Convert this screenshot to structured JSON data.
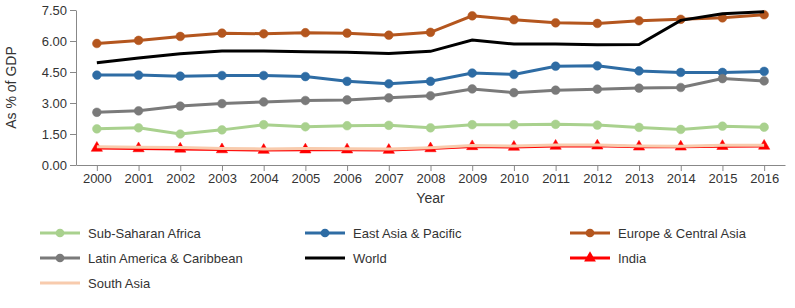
{
  "chart_data": {
    "type": "line",
    "x_label": "Year",
    "y_label": "As % of GDP",
    "categories": [
      "2000",
      "2001",
      "2002",
      "2003",
      "2004",
      "2005",
      "2006",
      "2007",
      "2008",
      "2009",
      "2010",
      "2011",
      "2012",
      "2013",
      "2014",
      "2015",
      "2016"
    ],
    "ylim": [
      0,
      7.5
    ],
    "yticks": [
      {
        "value": 0,
        "label": "0.00"
      },
      {
        "value": 1.5,
        "label": "1.50"
      },
      {
        "value": 3,
        "label": "3.00"
      },
      {
        "value": 4.5,
        "label": "4.50"
      },
      {
        "value": 6,
        "label": "6.00"
      },
      {
        "value": 7.5,
        "label": "7.50"
      }
    ],
    "grid": false,
    "legend": "bottom",
    "series": [
      {
        "name": "Sub-Saharan Africa",
        "color": "#a9d18e",
        "marker": "circle",
        "values": [
          1.75,
          1.8,
          1.5,
          1.7,
          1.95,
          1.85,
          1.9,
          1.92,
          1.8,
          1.95,
          1.95,
          1.97,
          1.93,
          1.82,
          1.72,
          1.88,
          1.83
        ]
      },
      {
        "name": "East Asia & Pacific",
        "color": "#2e6ca4",
        "marker": "circle",
        "values": [
          4.35,
          4.35,
          4.3,
          4.33,
          4.33,
          4.28,
          4.05,
          3.93,
          4.05,
          4.45,
          4.38,
          4.78,
          4.8,
          4.55,
          4.48,
          4.48,
          4.53
        ]
      },
      {
        "name": "Europe & Central Asia",
        "color": "#b4561e",
        "marker": "circle",
        "values": [
          5.88,
          6.03,
          6.22,
          6.38,
          6.35,
          6.4,
          6.38,
          6.28,
          6.42,
          7.22,
          7.03,
          6.88,
          6.85,
          6.98,
          7.05,
          7.12,
          7.27
        ]
      },
      {
        "name": "Latin America & Caribbean",
        "color": "#7a7a7a",
        "marker": "circle",
        "values": [
          2.55,
          2.62,
          2.85,
          2.97,
          3.05,
          3.12,
          3.15,
          3.25,
          3.35,
          3.68,
          3.5,
          3.62,
          3.67,
          3.72,
          3.75,
          4.18,
          4.07
        ]
      },
      {
        "name": "World",
        "color": "#000000",
        "marker": "none",
        "values": [
          4.95,
          5.18,
          5.38,
          5.52,
          5.52,
          5.48,
          5.45,
          5.4,
          5.5,
          6.05,
          5.85,
          5.85,
          5.82,
          5.83,
          7.0,
          7.32,
          7.42
        ]
      },
      {
        "name": "India",
        "color": "#ff0000",
        "marker": "triangle",
        "values": [
          0.82,
          0.8,
          0.78,
          0.75,
          0.72,
          0.74,
          0.74,
          0.72,
          0.8,
          0.9,
          0.87,
          0.92,
          0.93,
          0.88,
          0.88,
          0.91,
          0.92
        ]
      },
      {
        "name": "South Asia",
        "color": "#f8cbad",
        "marker": "none",
        "values": [
          0.88,
          0.86,
          0.85,
          0.8,
          0.78,
          0.8,
          0.79,
          0.77,
          0.84,
          0.94,
          0.92,
          0.97,
          0.97,
          0.92,
          0.91,
          0.95,
          0.96
        ]
      }
    ]
  }
}
